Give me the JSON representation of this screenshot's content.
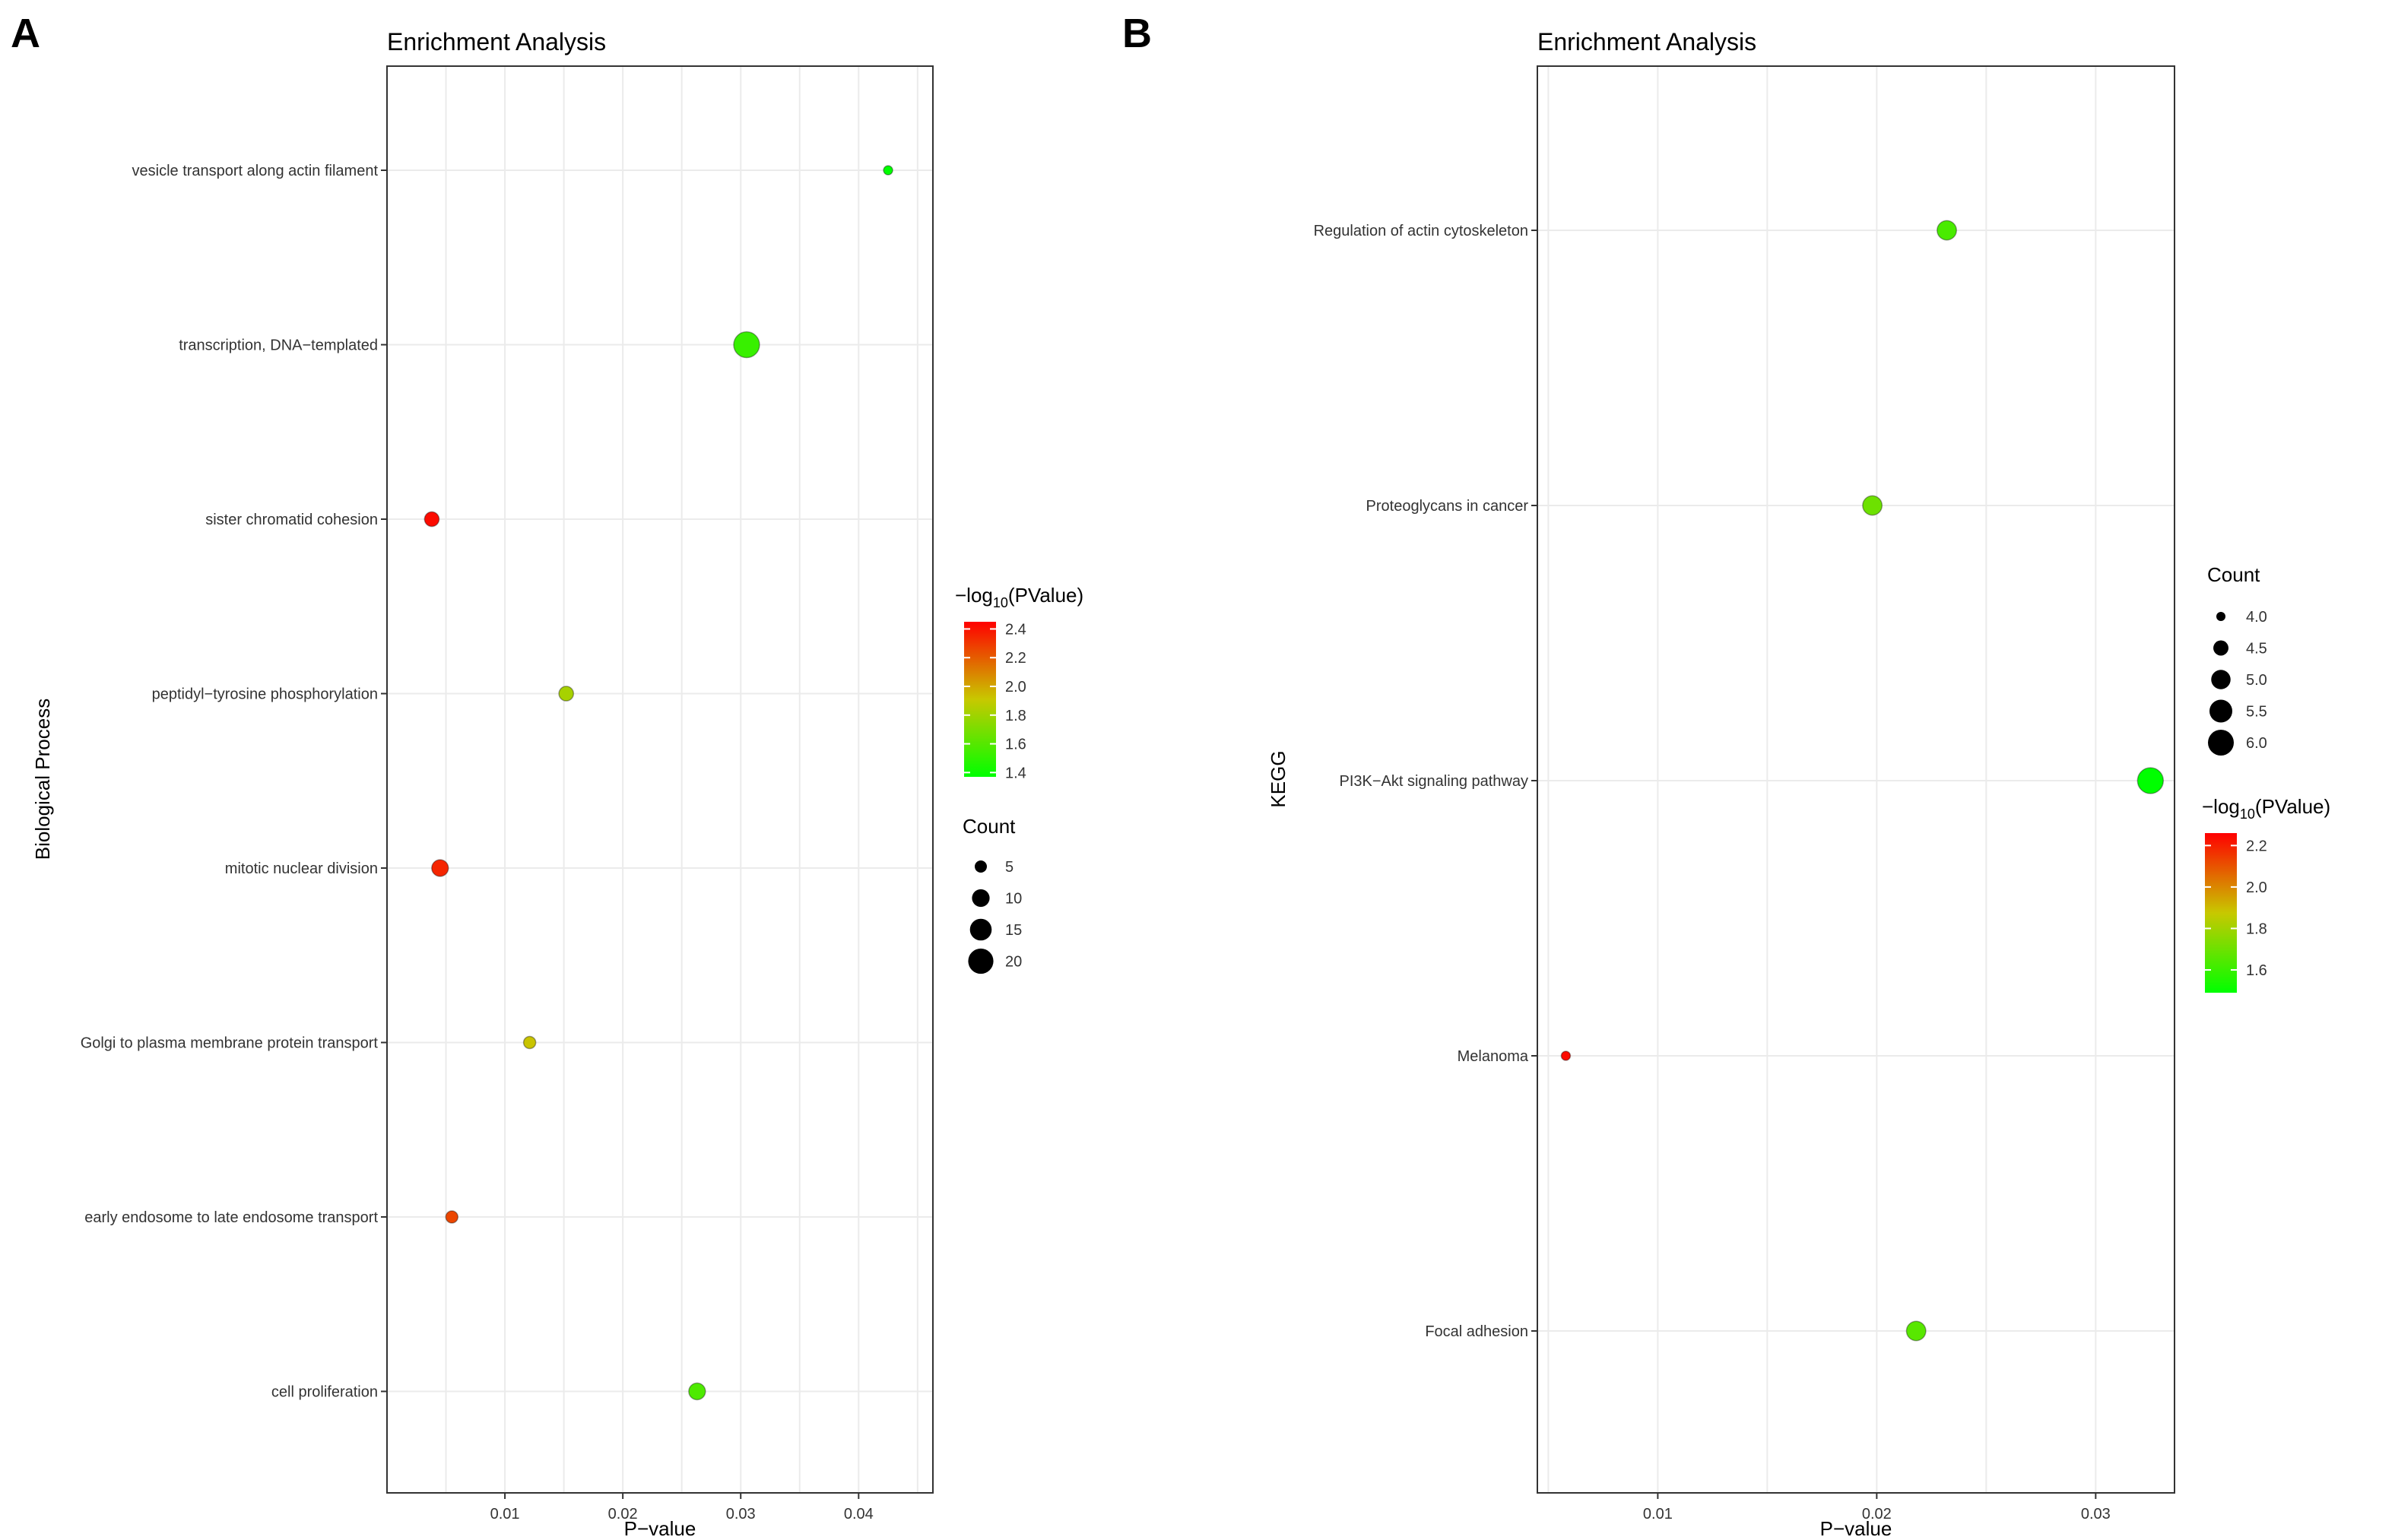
{
  "chart_data": [
    {
      "panel": "A",
      "type": "scatter",
      "title": "Enrichment Analysis",
      "xlabel": "P−value",
      "ylabel": "Biological Process",
      "xlim": [
        0.0,
        0.0463
      ],
      "xticks": [
        0.01,
        0.02,
        0.03,
        0.04
      ],
      "xtick_labels": [
        "0.01",
        "0.02",
        "0.03",
        "0.04"
      ],
      "categories": [
        "vesicle transport along actin filament",
        "transcription, DNA−templated",
        "sister chromatid cohesion",
        "peptidyl−tyrosine phosphorylation",
        "mitotic nuclear division",
        "Golgi to plasma membrane protein transport",
        "early endosome to late endosome transport",
        "cell proliferation"
      ],
      "points": [
        {
          "term": "vesicle transport along actin filament",
          "pvalue": 0.0425,
          "count": 3,
          "neglog10": 1.37
        },
        {
          "term": "transcription, DNA−templated",
          "pvalue": 0.0305,
          "count": 21,
          "neglog10": 1.52
        },
        {
          "term": "sister chromatid cohesion",
          "pvalue": 0.0038,
          "count": 7,
          "neglog10": 2.42
        },
        {
          "term": "peptidyl−tyrosine phosphorylation",
          "pvalue": 0.0152,
          "count": 7,
          "neglog10": 1.82
        },
        {
          "term": "mitotic nuclear division",
          "pvalue": 0.0045,
          "count": 9,
          "neglog10": 2.35
        },
        {
          "term": "Golgi to plasma membrane protein transport",
          "pvalue": 0.0121,
          "count": 5,
          "neglog10": 1.92
        },
        {
          "term": "early endosome to late endosome transport",
          "pvalue": 0.0055,
          "count": 5,
          "neglog10": 2.26
        },
        {
          "term": "cell proliferation",
          "pvalue": 0.0263,
          "count": 9,
          "neglog10": 1.58
        }
      ],
      "color_legend": {
        "title_prefix": "−log",
        "title_sub": "10",
        "title_suffix": "(PValue)",
        "min": 1.37,
        "max": 2.45,
        "ticks": [
          1.4,
          1.6,
          1.8,
          2.0,
          2.2,
          2.4
        ],
        "tick_labels": [
          "1.4",
          "1.6",
          "1.8",
          "2.0",
          "2.2",
          "2.4"
        ]
      },
      "size_legend": {
        "title": "Count",
        "values": [
          5,
          10,
          15,
          20
        ],
        "labels": [
          "5",
          "10",
          "15",
          "20"
        ],
        "min": 3,
        "max": 21
      }
    },
    {
      "panel": "B",
      "type": "scatter",
      "title": "Enrichment Analysis",
      "xlabel": "P−value",
      "ylabel": "KEGG",
      "xlim": [
        0.0045,
        0.0336
      ],
      "xticks": [
        0.01,
        0.02,
        0.03
      ],
      "xtick_labels": [
        "0.01",
        "0.02",
        "0.03"
      ],
      "categories": [
        "Regulation of actin cytoskeleton",
        "Proteoglycans in cancer",
        "PI3K−Akt signaling pathway",
        "Melanoma",
        "Focal adhesion"
      ],
      "points": [
        {
          "term": "Regulation of actin cytoskeleton",
          "pvalue": 0.0232,
          "count": 5,
          "neglog10": 1.63
        },
        {
          "term": "Proteoglycans in cancer",
          "pvalue": 0.0198,
          "count": 5,
          "neglog10": 1.7
        },
        {
          "term": "PI3K−Akt signaling pathway",
          "pvalue": 0.0325,
          "count": 6,
          "neglog10": 1.49
        },
        {
          "term": "Melanoma",
          "pvalue": 0.0058,
          "count": 4,
          "neglog10": 2.24
        },
        {
          "term": "Focal adhesion",
          "pvalue": 0.0218,
          "count": 5,
          "neglog10": 1.66
        }
      ],
      "color_legend": {
        "title_prefix": "−log",
        "title_sub": "10",
        "title_suffix": "(PValue)",
        "min": 1.49,
        "max": 2.26,
        "ticks": [
          1.6,
          1.8,
          2.0,
          2.2
        ],
        "tick_labels": [
          "1.6",
          "1.8",
          "2.0",
          "2.2"
        ]
      },
      "size_legend": {
        "title": "Count",
        "values": [
          4.0,
          4.5,
          5.0,
          5.5,
          6.0
        ],
        "labels": [
          "4.0",
          "4.5",
          "5.0",
          "5.5",
          "6.0"
        ],
        "min": 4,
        "max": 6
      }
    }
  ],
  "colors": {
    "low": "#00ff00",
    "mid": "#c8c800",
    "high": "#ff0000"
  }
}
